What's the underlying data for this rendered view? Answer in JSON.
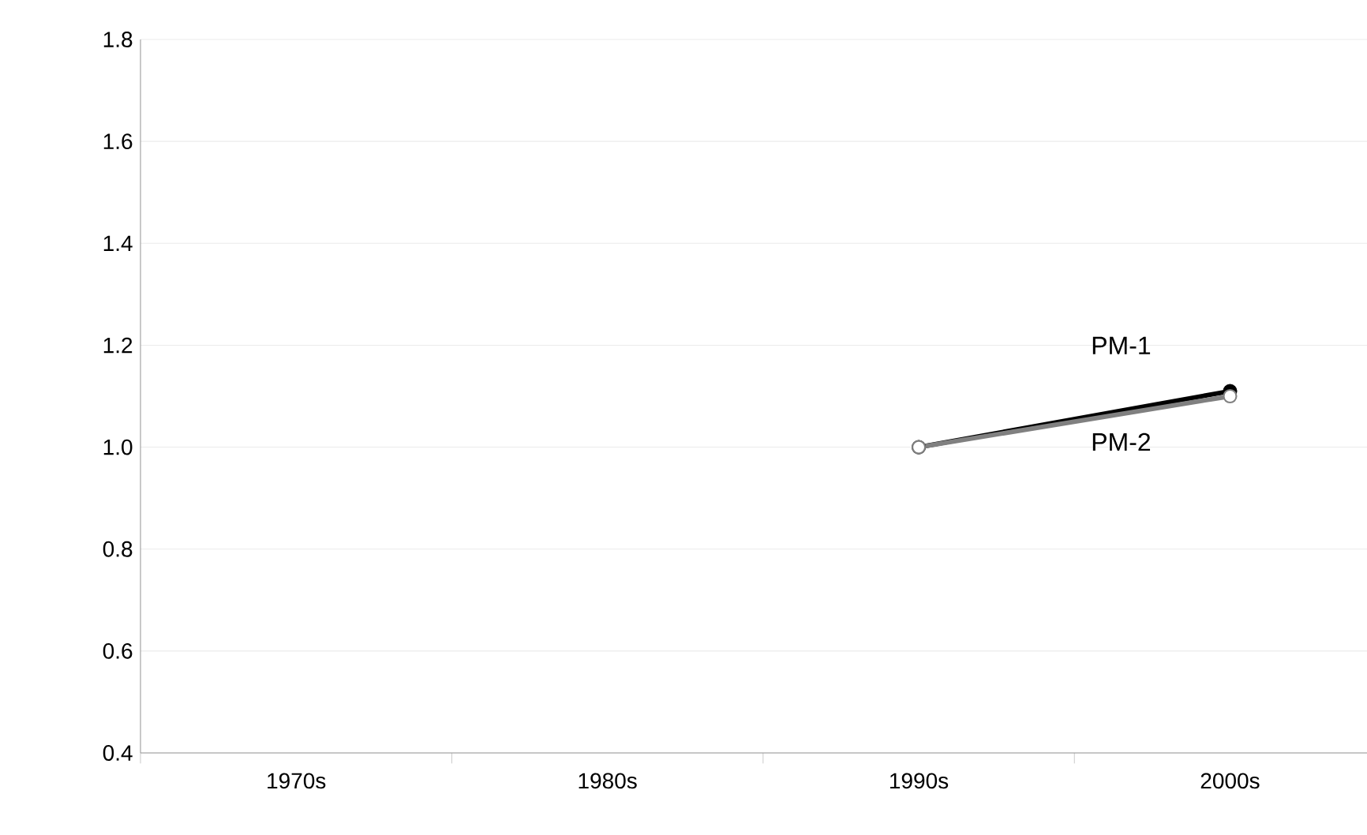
{
  "chart_data": {
    "type": "line",
    "categories": [
      "1970s",
      "1980s",
      "1990s",
      "2000s"
    ],
    "series": [
      {
        "name": "PM-1",
        "color": "#000000",
        "values": [
          null,
          null,
          1.0,
          1.11
        ]
      },
      {
        "name": "PM-2",
        "color": "#808080",
        "values": [
          null,
          null,
          1.0,
          1.1
        ]
      }
    ],
    "ylim": [
      0.4,
      1.8
    ],
    "yticks": [
      {
        "value": 0.4,
        "label": "0.4"
      },
      {
        "value": 0.6,
        "label": "0.6"
      },
      {
        "value": 0.8,
        "label": "0.8"
      },
      {
        "value": 1.0,
        "label": "1.0"
      },
      {
        "value": 1.2,
        "label": "1.2"
      },
      {
        "value": 1.4,
        "label": "1.4"
      },
      {
        "value": 1.6,
        "label": "1.6"
      },
      {
        "value": 1.8,
        "label": "1.8"
      }
    ],
    "grid": "y",
    "marker": "circle",
    "line_style": "solid"
  }
}
